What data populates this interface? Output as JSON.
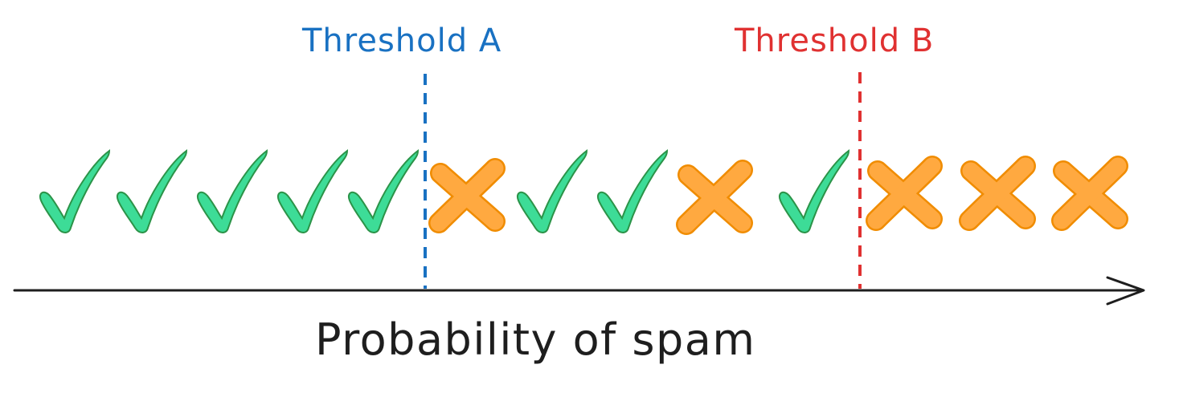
{
  "colors": {
    "check_fill": "#3ddc97",
    "check_stroke": "#2b9348",
    "cross_fill": "#ffa940",
    "cross_stroke": "#f08c00",
    "axis": "#1e1e1e",
    "threshold_a": "#1971c2",
    "threshold_b": "#e03131"
  },
  "thresholds": [
    {
      "label": "Threshold A",
      "color": "#1971c2"
    },
    {
      "label": "Threshold B",
      "color": "#e03131"
    }
  ],
  "axis": {
    "label": "Probability of spam"
  },
  "items": [
    "check",
    "check",
    "check",
    "check",
    "check",
    "cross",
    "check",
    "check",
    "cross",
    "check",
    "cross",
    "cross",
    "cross"
  ],
  "icons": {
    "check": "check-icon",
    "cross": "cross-icon"
  }
}
